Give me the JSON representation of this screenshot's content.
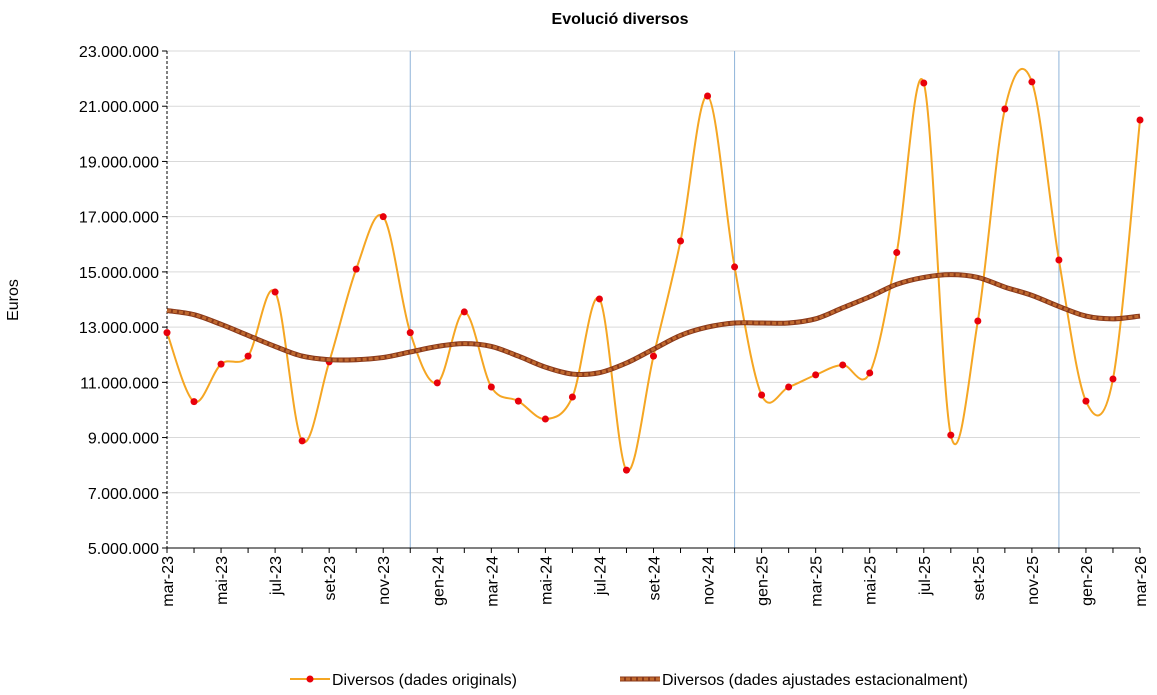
{
  "chart_data": {
    "type": "line",
    "title": "Evolució diversos",
    "ylabel": "Euros",
    "categories": [
      "mar-23",
      null,
      "mai-23",
      null,
      "jul-23",
      null,
      "set-23",
      null,
      "nov-23",
      null,
      "gen-24",
      null,
      "mar-24",
      null,
      "mai-24",
      null,
      "jul-24",
      null,
      "set-24",
      null,
      "nov-24",
      null,
      "gen-25",
      null,
      "mar-25",
      null,
      "mai-25",
      null,
      "jul-25",
      null,
      "set-25",
      null,
      "nov-25",
      null,
      "gen-26",
      null,
      "mar-26"
    ],
    "series": [
      {
        "name": "Diversos (dades originals)",
        "color": "#f5a623",
        "marker_color": "#e8000b",
        "values": [
          12800000,
          10300000,
          11660000,
          11950000,
          14270000,
          8880000,
          11740000,
          15100000,
          17000000,
          12800000,
          10980000,
          13550000,
          10830000,
          10320000,
          9670000,
          10470000,
          14020000,
          7820000,
          11950000,
          16120000,
          21370000,
          15180000,
          10540000,
          10830000,
          11270000,
          11630000,
          11340000,
          15700000,
          21840000,
          9090000,
          13220000,
          20900000,
          21880000,
          15430000,
          10320000,
          11120000,
          20500000
        ]
      },
      {
        "name": "Diversos (dades ajustades estacionalment)",
        "color": "#8b3a1a",
        "values": [
          13600000,
          13450000,
          13100000,
          12700000,
          12300000,
          11950000,
          11820000,
          11820000,
          11900000,
          12100000,
          12300000,
          12400000,
          12300000,
          11950000,
          11550000,
          11300000,
          11350000,
          11700000,
          12200000,
          12700000,
          13000000,
          13150000,
          13150000,
          13150000,
          13300000,
          13700000,
          14100000,
          14550000,
          14800000,
          14900000,
          14800000,
          14450000,
          14150000,
          13750000,
          13400000,
          13300000,
          13400000
        ]
      }
    ],
    "ylim": [
      5000000,
      23000000
    ],
    "yticks": [
      {
        "value": 5000000,
        "label": "5.000.000"
      },
      {
        "value": 7000000,
        "label": "7.000.000"
      },
      {
        "value": 9000000,
        "label": "9.000.000"
      },
      {
        "value": 11000000,
        "label": "11.000.000"
      },
      {
        "value": 13000000,
        "label": "13.000.000"
      },
      {
        "value": 15000000,
        "label": "15.000.000"
      },
      {
        "value": 17000000,
        "label": "17.000.000"
      },
      {
        "value": 19000000,
        "label": "19.000.000"
      },
      {
        "value": 21000000,
        "label": "21.000.000"
      },
      {
        "value": 23000000,
        "label": "23.000.000"
      }
    ],
    "grid": true,
    "legend": "bottom"
  }
}
